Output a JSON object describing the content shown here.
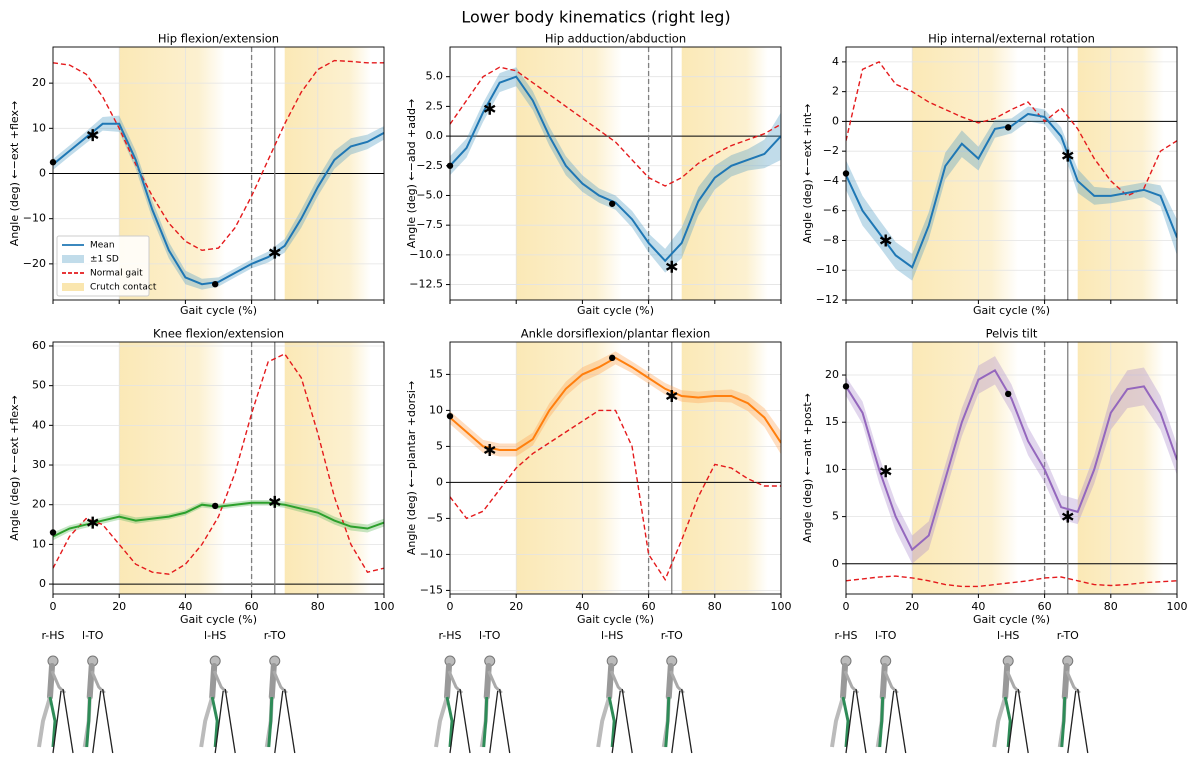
{
  "title": "Lower body kinematics (right leg)",
  "events": [
    {
      "label": "r-HS",
      "x": 0,
      "marker": "dot"
    },
    {
      "label": "l-TO",
      "x": 12,
      "marker": "star"
    },
    {
      "label": "l-HS",
      "x": 49,
      "marker": "dot"
    },
    {
      "label": "r-TO",
      "x": 67,
      "marker": "star"
    }
  ],
  "vlines": [
    {
      "x": 60,
      "style": "dashed"
    },
    {
      "x": 67,
      "style": "solid"
    }
  ],
  "crutch_contact": {
    "name": "Crutch contact",
    "color": "#f7d67a",
    "spans": [
      [
        20,
        52
      ],
      [
        70,
        96
      ]
    ]
  },
  "chart_data": [
    {
      "type": "line",
      "title": "Hip flexion/extension",
      "y_label": "Angle (deg) ←−ext +flex→",
      "x_label": "Gait cycle (%)",
      "show_xticklabels": false,
      "legend": "lower left",
      "grid": true,
      "x": [
        0,
        5,
        10,
        15,
        20,
        25,
        30,
        35,
        40,
        45,
        50,
        55,
        60,
        65,
        70,
        75,
        80,
        85,
        90,
        95,
        100
      ],
      "xlim": [
        0,
        100
      ],
      "xticks": [
        0,
        20,
        40,
        60,
        80,
        100
      ],
      "ylim": [
        -28,
        28
      ],
      "yticks": [
        {
          "value": -20,
          "label": "−20"
        },
        {
          "value": -10,
          "label": "−10"
        },
        0,
        10,
        20
      ],
      "series": [
        {
          "name": "Mean",
          "color": "#1f77b4",
          "values": [
            2,
            5,
            8,
            11,
            11,
            3,
            -8,
            -17,
            -23,
            -24.5,
            -24,
            -22,
            -20,
            -18.5,
            -16,
            -10,
            -3,
            3,
            6,
            7,
            9
          ]
        },
        {
          "name": "±1 SD",
          "color": "#4d9ac4",
          "values": [
            1.2,
            1.2,
            1.3,
            1.5,
            1.8,
            2,
            2,
            1.8,
            1.5,
            1.2,
            1,
            1,
            1,
            1.2,
            1.5,
            2,
            2,
            2,
            1.8,
            1.6,
            1.5
          ]
        },
        {
          "name": "Normal gait",
          "color": "#e41a1c",
          "values": [
            24.5,
            24,
            22,
            17,
            10,
            2,
            -5,
            -11,
            -15,
            -17,
            -16.5,
            -12,
            -5,
            3,
            11,
            18,
            23,
            25,
            24.8,
            24.5,
            24.5
          ]
        }
      ],
      "event_values": [
        2.5,
        8.5,
        -24.5,
        -17.5
      ]
    },
    {
      "type": "line",
      "title": "Hip adduction/abduction",
      "y_label": "Angle (deg) ←−abd +add→",
      "x_label": "Gait cycle (%)",
      "show_xticklabels": false,
      "grid": true,
      "x": [
        0,
        5,
        10,
        15,
        20,
        25,
        30,
        35,
        40,
        45,
        50,
        55,
        60,
        65,
        70,
        75,
        80,
        85,
        90,
        95,
        100
      ],
      "xlim": [
        0,
        100
      ],
      "xticks": [
        0,
        20,
        40,
        60,
        80,
        100
      ],
      "ylim": [
        -13.8,
        7.5
      ],
      "yticks": [
        {
          "value": -12.5,
          "label": "−12.5"
        },
        {
          "value": -10,
          "label": "−10.0"
        },
        {
          "value": -7.5,
          "label": "−7.5"
        },
        {
          "value": -5,
          "label": "−5.0"
        },
        {
          "value": -2.5,
          "label": "−2.5"
        },
        {
          "value": 0,
          "label": "0.0"
        },
        {
          "value": 2.5,
          "label": "2.5"
        },
        {
          "value": 5,
          "label": "5.0"
        }
      ],
      "series": [
        {
          "color": "#1f77b4",
          "values": [
            -2.5,
            -1,
            2,
            4.5,
            5,
            3,
            0,
            -2.5,
            -4,
            -5,
            -5.6,
            -7,
            -9,
            -10.5,
            -9,
            -5.5,
            -3.5,
            -2.5,
            -2,
            -1.5,
            0
          ]
        },
        {
          "color": "#4d9ac4",
          "values": [
            0.8,
            0.8,
            0.8,
            0.8,
            0.8,
            0.8,
            0.8,
            0.8,
            0.7,
            0.6,
            0.6,
            0.7,
            0.8,
            1,
            1.3,
            1.2,
            1,
            0.9,
            0.9,
            1.2,
            2
          ]
        },
        {
          "color": "#e41a1c",
          "values": [
            1,
            3,
            5,
            5.8,
            5.5,
            4.5,
            3.5,
            2.5,
            1.5,
            0.5,
            -0.5,
            -2,
            -3.5,
            -4.2,
            -3.5,
            -2.3,
            -1.5,
            -0.8,
            -0.3,
            0.2,
            1
          ]
        }
      ],
      "event_values": [
        -2.5,
        2.3,
        -5.7,
        -11
      ]
    },
    {
      "type": "line",
      "title": "Hip internal/external rotation",
      "y_label": "Angle (deg) ←−ext +int→",
      "x_label": "Gait cycle (%)",
      "show_xticklabels": false,
      "grid": true,
      "x": [
        0,
        5,
        10,
        15,
        20,
        25,
        30,
        35,
        40,
        45,
        50,
        55,
        60,
        65,
        70,
        75,
        80,
        85,
        90,
        95,
        100
      ],
      "xlim": [
        0,
        100
      ],
      "xticks": [
        0,
        20,
        40,
        60,
        80,
        100
      ],
      "ylim": [
        -12,
        5
      ],
      "yticks": [
        {
          "value": -12,
          "label": "−12"
        },
        {
          "value": -10,
          "label": "−10"
        },
        {
          "value": -8,
          "label": "−8"
        },
        {
          "value": -6,
          "label": "−6"
        },
        {
          "value": -4,
          "label": "−4"
        },
        {
          "value": -2,
          "label": "−2"
        },
        0,
        2,
        4
      ],
      "series": [
        {
          "color": "#1f77b4",
          "values": [
            -3.6,
            -6,
            -7.5,
            -9,
            -9.8,
            -7,
            -3,
            -1.5,
            -2.5,
            -0.5,
            -0.3,
            0.5,
            0.3,
            -1,
            -4,
            -5,
            -5,
            -4.8,
            -4.6,
            -5,
            -7.8
          ]
        },
        {
          "color": "#4d9ac4",
          "values": [
            1,
            1,
            0.9,
            0.9,
            0.9,
            0.9,
            0.9,
            0.9,
            0.8,
            0.6,
            0.5,
            0.5,
            0.5,
            0.6,
            0.8,
            0.6,
            0.5,
            0.5,
            0.5,
            0.7,
            1.2
          ]
        },
        {
          "color": "#e41a1c",
          "values": [
            -1.3,
            3.5,
            4,
            2.5,
            2,
            1.3,
            0.8,
            0.3,
            -0.1,
            0.2,
            0.8,
            1.3,
            0,
            0.9,
            -0.5,
            -2.5,
            -4,
            -5,
            -4.5,
            -2,
            -1.3
          ]
        }
      ],
      "event_values": [
        -3.5,
        -8,
        -0.4,
        -2.3
      ]
    },
    {
      "type": "line",
      "title": "Knee flexion/extension",
      "y_label": "Angle (deg) ←−ext +flex→",
      "x_label": "Gait cycle (%)",
      "show_xticklabels": true,
      "grid": true,
      "x": [
        0,
        5,
        10,
        15,
        20,
        25,
        30,
        35,
        40,
        45,
        50,
        55,
        60,
        65,
        70,
        75,
        80,
        85,
        90,
        95,
        100
      ],
      "xlim": [
        0,
        100
      ],
      "xticks": [
        0,
        20,
        40,
        60,
        80,
        100
      ],
      "ylim": [
        -2.5,
        61
      ],
      "yticks": [
        0,
        10,
        20,
        30,
        40,
        50,
        60
      ],
      "series": [
        {
          "color": "#2ca02c",
          "values": [
            12,
            14,
            15,
            16,
            17,
            16,
            16.5,
            17,
            18,
            20,
            19.5,
            20,
            20.5,
            20.5,
            20,
            19,
            18,
            16,
            14.5,
            14,
            15.5
          ]
        },
        {
          "color": "#5cb85c",
          "values": [
            1,
            0.8,
            0.8,
            0.8,
            0.8,
            0.8,
            0.7,
            0.7,
            0.7,
            0.7,
            0.7,
            0.7,
            0.7,
            0.7,
            0.8,
            0.9,
            1,
            1,
            1,
            1,
            1
          ]
        },
        {
          "color": "#e41a1c",
          "values": [
            4,
            12,
            16.5,
            15,
            10,
            5,
            3,
            2.5,
            5,
            10,
            17,
            28,
            43,
            56,
            58,
            52,
            38,
            22,
            10,
            3,
            4
          ]
        }
      ],
      "event_values": [
        13,
        15.5,
        19.7,
        20.7
      ]
    },
    {
      "type": "line",
      "title": "Ankle dorsiflexion/plantar flexion",
      "y_label": "Angle (deg) ←−plantar +dorsi→",
      "x_label": "Gait cycle (%)",
      "show_xticklabels": true,
      "grid": true,
      "x": [
        0,
        5,
        10,
        15,
        20,
        25,
        30,
        35,
        40,
        45,
        50,
        55,
        60,
        65,
        70,
        75,
        80,
        85,
        90,
        95,
        100
      ],
      "xlim": [
        0,
        100
      ],
      "xticks": [
        0,
        20,
        40,
        60,
        80,
        100
      ],
      "ylim": [
        -15.5,
        19.5
      ],
      "yticks": [
        {
          "value": -15,
          "label": "−15"
        },
        {
          "value": -10,
          "label": "−10"
        },
        {
          "value": -5,
          "label": "−5"
        },
        0,
        5,
        10,
        15
      ],
      "series": [
        {
          "color": "#ff7f0e",
          "values": [
            9,
            7,
            5,
            4.5,
            4.5,
            6,
            10,
            13,
            15,
            16,
            17.3,
            16,
            14.5,
            13,
            12,
            11.8,
            12,
            12,
            11,
            9,
            5.5
          ]
        },
        {
          "color": "#ffa04d",
          "values": [
            0.9,
            0.9,
            0.9,
            0.9,
            0.9,
            0.9,
            1,
            1,
            1,
            1,
            0.9,
            0.8,
            0.8,
            0.8,
            0.8,
            0.8,
            0.8,
            0.9,
            1.1,
            1.3,
            1.6
          ]
        },
        {
          "color": "#e41a1c",
          "values": [
            -2,
            -5,
            -4,
            -1,
            2,
            4,
            5.5,
            7,
            8.5,
            10,
            10,
            5,
            -10,
            -13.5,
            -8,
            -2,
            2.5,
            2,
            0.5,
            -0.5,
            -0.5
          ]
        }
      ],
      "event_values": [
        9.2,
        4.5,
        17.3,
        12
      ]
    },
    {
      "type": "line",
      "title": "Pelvis tilt",
      "y_label": "Angle (deg) ←−ant +post→",
      "x_label": "Gait cycle (%)",
      "show_xticklabels": true,
      "grid": true,
      "x": [
        0,
        5,
        10,
        15,
        20,
        25,
        30,
        35,
        40,
        45,
        50,
        55,
        60,
        65,
        70,
        75,
        80,
        85,
        90,
        95,
        100
      ],
      "xlim": [
        0,
        100
      ],
      "xticks": [
        0,
        20,
        40,
        60,
        80,
        100
      ],
      "ylim": [
        -3.2,
        23.5
      ],
      "yticks": [
        0,
        5,
        10,
        15,
        20
      ],
      "series": [
        {
          "color": "#9467bd",
          "values": [
            18.8,
            16,
            10,
            5,
            1.5,
            3,
            9,
            15,
            19.5,
            20.5,
            17.5,
            13,
            10,
            6,
            5.5,
            10,
            16,
            18.5,
            18.8,
            16,
            11
          ]
        },
        {
          "color": "#a98acb",
          "values": [
            1,
            1.2,
            1.4,
            1.5,
            1.5,
            1.5,
            1.5,
            1.5,
            1.5,
            1.5,
            1.5,
            1.5,
            1.4,
            1.3,
            1.3,
            1.5,
            1.8,
            2,
            2,
            1.8,
            1.6
          ]
        },
        {
          "color": "#e41a1c",
          "values": [
            -1.8,
            -1.6,
            -1.4,
            -1.3,
            -1.5,
            -1.8,
            -2.2,
            -2.4,
            -2.4,
            -2.2,
            -2,
            -1.8,
            -1.5,
            -1.4,
            -1.8,
            -2.2,
            -2.3,
            -2.2,
            -2,
            -1.9,
            -1.8
          ]
        }
      ],
      "event_values": [
        18.8,
        9.8,
        18,
        5
      ]
    }
  ]
}
